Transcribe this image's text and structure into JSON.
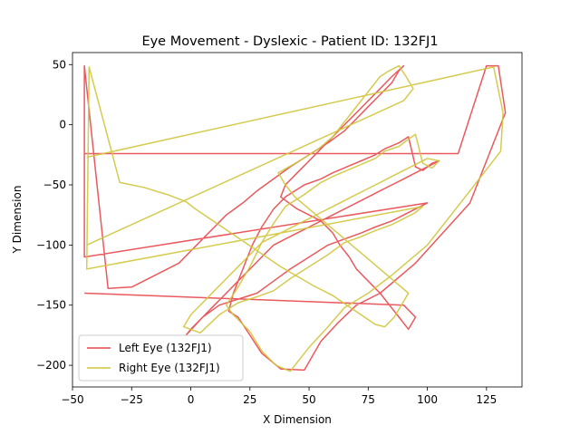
{
  "chart_data": {
    "type": "line",
    "title": "Eye Movement - Dyslexic - Patient ID: 132FJ1",
    "xlabel": "X Dimension",
    "ylabel": "Y Dimension",
    "xlim": [
      -50,
      140
    ],
    "ylim": [
      -218,
      60
    ],
    "xticks": [
      -50,
      -25,
      0,
      25,
      50,
      75,
      100,
      125
    ],
    "yticks": [
      -200,
      -150,
      -100,
      -50,
      0,
      50
    ],
    "grid": false,
    "legend_position": "lower-left",
    "colors": {
      "left": "#e8474c",
      "right": "#cfc53c",
      "overlap": "#d4922a"
    },
    "series": [
      {
        "name": "Left Eye (132FJ1)",
        "x": [
          -45,
          113,
          125,
          130,
          133,
          118,
          95,
          80,
          70,
          62,
          55,
          48,
          38,
          30,
          25,
          20,
          16,
          18,
          22,
          26,
          30,
          35,
          40,
          48,
          55,
          60,
          66,
          72,
          78,
          82,
          88,
          92,
          95,
          98,
          102,
          105,
          100,
          95,
          90,
          85,
          80,
          75,
          70,
          65,
          60,
          55,
          50,
          45,
          40,
          35,
          30,
          25,
          20,
          15,
          10,
          5,
          0,
          -2,
          5,
          12,
          20,
          28,
          35,
          42,
          50,
          58,
          65,
          72,
          78,
          85,
          90,
          95,
          100,
          -45,
          -45,
          -35,
          -25,
          -15,
          -5,
          0,
          5,
          10,
          15,
          22,
          28,
          35,
          42,
          50,
          58,
          65,
          70,
          75,
          80,
          85,
          88,
          90,
          85,
          80,
          75,
          70,
          65,
          60,
          55,
          50,
          45,
          40,
          38,
          45,
          55,
          60,
          63,
          67,
          70,
          75,
          80,
          84,
          88,
          90,
          92,
          95,
          90,
          -45
        ],
        "y": [
          -24,
          -24,
          49,
          49,
          10,
          -65,
          -115,
          -140,
          -150,
          -165,
          -180,
          -204,
          -203,
          -190,
          -175,
          -160,
          -155,
          -140,
          -120,
          -100,
          -85,
          -70,
          -60,
          -50,
          -45,
          -40,
          -35,
          -30,
          -25,
          -20,
          -15,
          -10,
          -35,
          -38,
          -32,
          -30,
          -35,
          -40,
          -45,
          -50,
          -55,
          -60,
          -65,
          -70,
          -75,
          -80,
          -85,
          -90,
          -95,
          -100,
          -110,
          -120,
          -130,
          -140,
          -150,
          -160,
          -170,
          -175,
          -160,
          -150,
          -145,
          -140,
          -130,
          -120,
          -110,
          -100,
          -95,
          -90,
          -85,
          -80,
          -75,
          -70,
          -65,
          -110,
          49,
          -136,
          -135,
          -125,
          -115,
          -105,
          -95,
          -85,
          -75,
          -65,
          -55,
          -45,
          -35,
          -25,
          -15,
          -5,
          5,
          15,
          25,
          35,
          45,
          49,
          40,
          30,
          20,
          10,
          0,
          -10,
          -20,
          -30,
          -40,
          -50,
          -60,
          -70,
          -80,
          -90,
          -100,
          -110,
          -120,
          -130,
          -140,
          -150,
          -160,
          -165,
          -170,
          -160,
          -150,
          -140
        ]
      },
      {
        "name": "Right Eye (132FJ1)",
        "x": [
          -44,
          128,
          132,
          131,
          118,
          100,
          85,
          75,
          65,
          58,
          50,
          42,
          36,
          30,
          25,
          18,
          15,
          20,
          25,
          30,
          35,
          40,
          48,
          55,
          60,
          66,
          72,
          78,
          82,
          88,
          92,
          95,
          98,
          102,
          105,
          100,
          95,
          90,
          85,
          80,
          75,
          70,
          65,
          60,
          55,
          50,
          45,
          40,
          35,
          30,
          25,
          20,
          15,
          10,
          5,
          0,
          -3,
          4,
          12,
          20,
          28,
          35,
          42,
          50,
          58,
          65,
          72,
          78,
          85,
          90,
          95,
          98,
          -44,
          -43,
          -30,
          -20,
          -10,
          -2,
          2,
          8,
          14,
          20,
          26,
          32,
          38,
          45,
          52,
          60,
          66,
          72,
          78,
          82,
          86,
          89,
          92,
          86,
          80,
          74,
          68,
          62,
          56,
          50,
          44,
          40,
          37,
          46,
          54,
          60,
          64,
          68,
          72,
          76,
          80,
          84,
          88,
          91,
          94,
          90,
          -44
        ],
        "y": [
          -27,
          48,
          10,
          -22,
          -55,
          -100,
          -125,
          -140,
          -152,
          -168,
          -185,
          -205,
          -200,
          -188,
          -172,
          -158,
          -150,
          -135,
          -118,
          -98,
          -82,
          -68,
          -58,
          -48,
          -43,
          -38,
          -33,
          -28,
          -22,
          -18,
          -12,
          -8,
          -32,
          -36,
          -30,
          -28,
          -33,
          -38,
          -43,
          -48,
          -53,
          -58,
          -63,
          -68,
          -73,
          -78,
          -83,
          -88,
          -93,
          -98,
          -108,
          -118,
          -128,
          -138,
          -148,
          -158,
          -168,
          -173,
          -158,
          -148,
          -143,
          -138,
          -128,
          -118,
          -108,
          -98,
          -93,
          -88,
          -83,
          -78,
          -73,
          -68,
          -120,
          48,
          -48,
          -52,
          -58,
          -64,
          -70,
          -78,
          -86,
          -94,
          -102,
          -110,
          -118,
          -126,
          -134,
          -142,
          -150,
          -158,
          -166,
          -168,
          -160,
          -150,
          -140,
          -130,
          -120,
          -110,
          -100,
          -90,
          -80,
          -70,
          -60,
          -50,
          -40,
          -30,
          -20,
          -10,
          0,
          10,
          20,
          30,
          40,
          45,
          49,
          40,
          30,
          20,
          -100
        ]
      }
    ]
  }
}
